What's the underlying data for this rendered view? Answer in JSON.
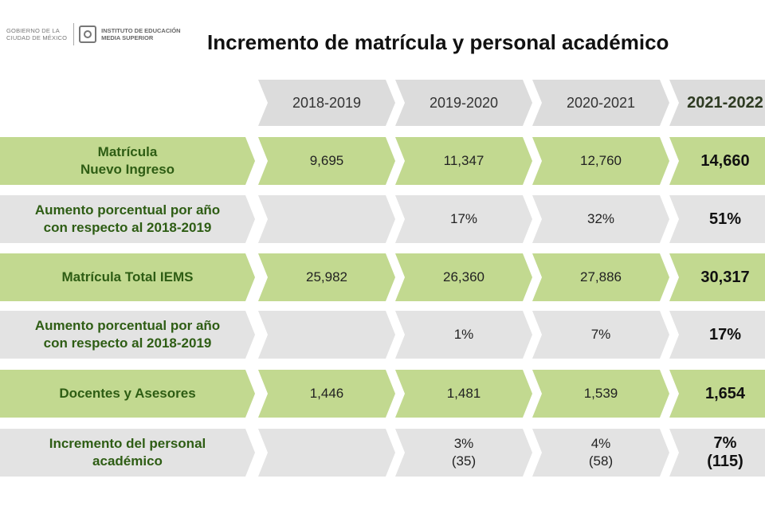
{
  "header": {
    "gov_line1": "GOBIERNO DE LA",
    "gov_line2": "CIUDAD DE MÉXICO",
    "iems_line1": "INSTITUTO DE EDUCACIÓN",
    "iems_line2": "MEDIA SUPERIOR",
    "title": "Incremento de matrícula y personal académico"
  },
  "columns": [
    "2018-2019",
    "2019-2020",
    "2020-2021",
    "2021-2022"
  ],
  "rows": [
    {
      "label": "Matrícula\nNuevo Ingreso",
      "values": [
        "9,695",
        "11,347",
        "12,760",
        "14,660"
      ]
    },
    {
      "label": "Aumento porcentual por año\ncon respecto al 2018-2019",
      "values": [
        "",
        "17%",
        "32%",
        "51%"
      ]
    },
    {
      "label": "Matrícula Total IEMS",
      "values": [
        "25,982",
        "26,360",
        "27,886",
        "30,317"
      ]
    },
    {
      "label": "Aumento porcentual por año\ncon respecto al 2018-2019",
      "values": [
        "",
        "1%",
        "7%",
        "17%"
      ]
    },
    {
      "label": "Docentes y Asesores",
      "values": [
        "1,446",
        "1,481",
        "1,539",
        "1,654"
      ]
    },
    {
      "label": "Incremento del personal\nacadémico",
      "values": [
        "",
        "3%\n(35)",
        "4%\n(58)",
        "7%\n(115)"
      ]
    }
  ],
  "colors": {
    "green": "#c2d990",
    "gray": "#e3e3e3",
    "label_text": "#2e5d14"
  }
}
